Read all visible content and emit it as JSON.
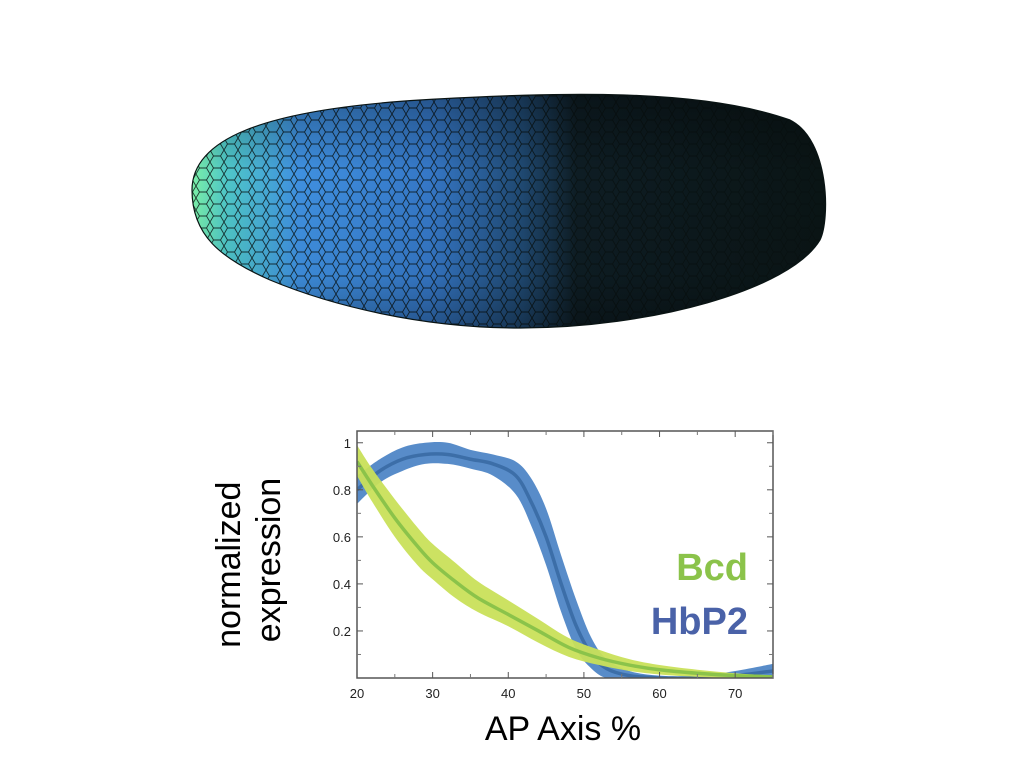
{
  "figure": {
    "image_description_name": "embryo-expression-render",
    "colors": {
      "embryo_bright": "#7dffa0",
      "embryo_mid": "#3f8ee0",
      "embryo_dark": "#0b1616",
      "cell_border": "#0a1818"
    }
  },
  "chart_data": {
    "type": "line",
    "title": "",
    "xlabel": "AP Axis %",
    "ylabel": "normalized expression",
    "xlim": [
      20,
      75
    ],
    "ylim": [
      0,
      1.05
    ],
    "x_ticks": [
      20,
      30,
      40,
      50,
      60,
      70
    ],
    "y_ticks": [
      0.2,
      0.4,
      0.6,
      0.8,
      1
    ],
    "y_tick_labels": [
      "0.2",
      "0.4",
      "0.6",
      "0.8",
      "1"
    ],
    "x_tick_labels": [
      "20",
      "30",
      "40",
      "50",
      "60",
      "70"
    ],
    "grid": false,
    "series": [
      {
        "name": "Bcd",
        "color": "#8bc34a",
        "band_color": "#c9e05a",
        "x": [
          20,
          22,
          25,
          28,
          30,
          33,
          36,
          40,
          44,
          48,
          52,
          56,
          60,
          65,
          70,
          75
        ],
        "mean": [
          0.92,
          0.82,
          0.68,
          0.56,
          0.49,
          0.41,
          0.34,
          0.27,
          0.2,
          0.13,
          0.085,
          0.055,
          0.035,
          0.02,
          0.01,
          0.005
        ],
        "lower": [
          0.86,
          0.75,
          0.6,
          0.48,
          0.42,
          0.34,
          0.28,
          0.22,
          0.15,
          0.09,
          0.055,
          0.03,
          0.015,
          0.005,
          0.0,
          0.0
        ],
        "upper": [
          0.99,
          0.89,
          0.76,
          0.64,
          0.57,
          0.49,
          0.41,
          0.33,
          0.25,
          0.17,
          0.12,
          0.08,
          0.055,
          0.035,
          0.02,
          0.01
        ]
      },
      {
        "name": "HbP2",
        "color": "#3c6ea8",
        "band_color": "#4f86c6",
        "x": [
          20,
          23,
          26,
          29,
          32,
          35,
          38,
          41,
          43,
          45,
          47,
          49,
          51,
          53,
          56,
          60,
          65,
          70,
          75
        ],
        "mean": [
          0.8,
          0.88,
          0.93,
          0.95,
          0.95,
          0.93,
          0.91,
          0.86,
          0.75,
          0.6,
          0.4,
          0.22,
          0.1,
          0.04,
          0.01,
          0.0,
          0.0,
          0.01,
          0.03
        ],
        "lower": [
          0.74,
          0.83,
          0.88,
          0.91,
          0.91,
          0.89,
          0.86,
          0.78,
          0.65,
          0.48,
          0.28,
          0.12,
          0.04,
          0.0,
          0.0,
          0.0,
          0.0,
          0.0,
          0.0
        ],
        "upper": [
          0.86,
          0.93,
          0.98,
          1.0,
          1.0,
          0.97,
          0.95,
          0.92,
          0.85,
          0.72,
          0.52,
          0.33,
          0.17,
          0.08,
          0.03,
          0.01,
          0.01,
          0.03,
          0.06
        ]
      }
    ],
    "legend": [
      {
        "label": "Bcd",
        "color": "#8bc34a"
      },
      {
        "label": "HbP2",
        "color": "#4a62a8"
      }
    ]
  }
}
